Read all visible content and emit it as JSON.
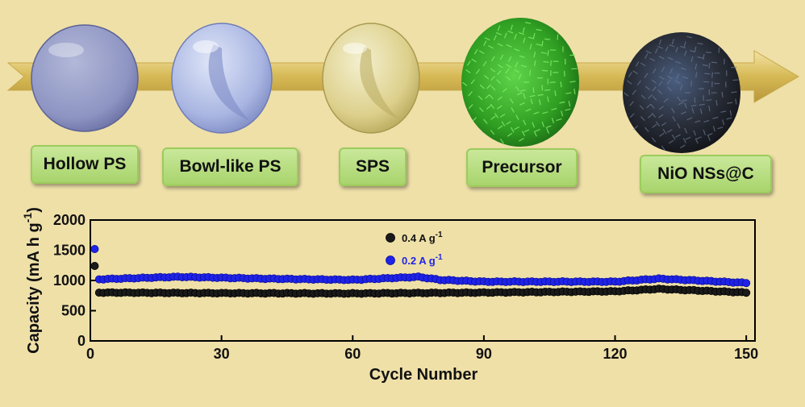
{
  "stages": [
    {
      "label": "Hollow PS"
    },
    {
      "label": "Bowl-like PS"
    },
    {
      "label": "SPS"
    },
    {
      "label": "Precursor"
    },
    {
      "label": "NiO NSs@C"
    }
  ],
  "colors": {
    "background": "#efe0a8",
    "arrow": "#d8bc5a",
    "label_box": "#b6dc7e",
    "series_a": "#1a1a1a",
    "series_b": "#1f23e8"
  },
  "chart_data": {
    "type": "scatter",
    "xlabel": "Cycle Number",
    "ylabel": "Capacity (mA h g",
    "ylabel_superscript": "-1",
    "ylabel_close": ")",
    "xlim": [
      0,
      152
    ],
    "ylim": [
      0,
      2000
    ],
    "xticks": [
      0,
      30,
      60,
      90,
      120,
      150
    ],
    "yticks": [
      0,
      500,
      1000,
      1500,
      2000
    ],
    "grid": false,
    "legend_position": "top-center",
    "series": [
      {
        "name": "0.4 A g",
        "name_superscript": "-1",
        "color": "#1a1a1a",
        "first_value": 1240,
        "profile_x": [
          2,
          30,
          60,
          90,
          120,
          130,
          150
        ],
        "profile_y": [
          800,
          790,
          785,
          800,
          820,
          860,
          800
        ]
      },
      {
        "name": "0.2 A g",
        "name_superscript": "-1",
        "color": "#1f23e8",
        "first_value": 1520,
        "profile_x": [
          2,
          20,
          40,
          60,
          75,
          80,
          90,
          120,
          130,
          150
        ],
        "profile_y": [
          1020,
          1060,
          1030,
          1010,
          1060,
          1010,
          980,
          980,
          1030,
          960
        ]
      }
    ]
  }
}
